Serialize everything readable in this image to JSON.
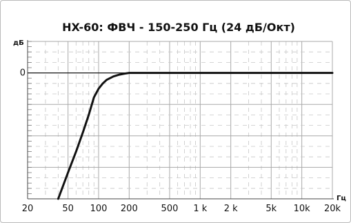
{
  "chart_data": {
    "type": "line",
    "title": "HX-60: ФВЧ - 150-250 Гц (24 дБ/Окт)",
    "xlabel": "Гц",
    "ylabel": "дБ",
    "x_scale": "log",
    "xlim": [
      20,
      20000
    ],
    "ylim": [
      -72,
      18
    ],
    "grid": true,
    "legend": "none",
    "x_ticks": [
      {
        "value": 20,
        "label": "20"
      },
      {
        "value": 50,
        "label": "50"
      },
      {
        "value": 100,
        "label": "100"
      },
      {
        "value": 200,
        "label": "200"
      },
      {
        "value": 500,
        "label": "500"
      },
      {
        "value": 1000,
        "label": "1 k"
      },
      {
        "value": 2000,
        "label": "2 k"
      },
      {
        "value": 5000,
        "label": "5k"
      },
      {
        "value": 10000,
        "label": "10k"
      },
      {
        "value": 20000,
        "label": "20k"
      }
    ],
    "y_ticks": [
      {
        "value": 0,
        "label": "0"
      }
    ],
    "series": [
      {
        "color": "#111111",
        "points": [
          {
            "x": 40,
            "y": -72
          },
          {
            "x": 50,
            "y": -57
          },
          {
            "x": 60,
            "y": -45
          },
          {
            "x": 70,
            "y": -34
          },
          {
            "x": 80,
            "y": -24
          },
          {
            "x": 90,
            "y": -14
          },
          {
            "x": 100,
            "y": -9
          },
          {
            "x": 110,
            "y": -6
          },
          {
            "x": 120,
            "y": -4
          },
          {
            "x": 140,
            "y": -2
          },
          {
            "x": 160,
            "y": -1
          },
          {
            "x": 180,
            "y": -0.4
          },
          {
            "x": 200,
            "y": 0
          },
          {
            "x": 500,
            "y": 0
          },
          {
            "x": 1000,
            "y": 0
          },
          {
            "x": 5000,
            "y": 0
          },
          {
            "x": 20000,
            "y": 0
          }
        ]
      }
    ]
  }
}
